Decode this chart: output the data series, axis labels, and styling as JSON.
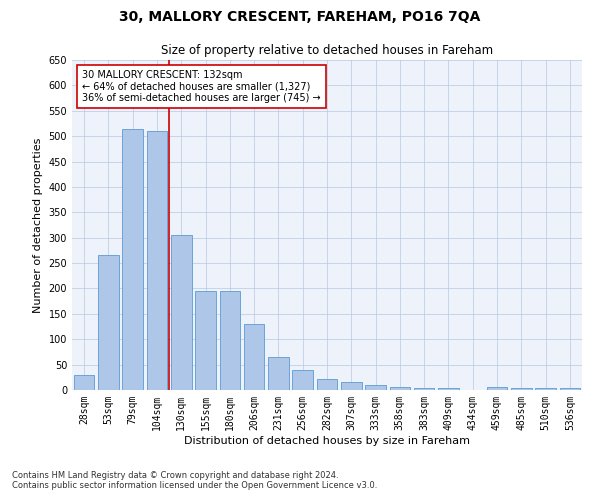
{
  "title": "30, MALLORY CRESCENT, FAREHAM, PO16 7QA",
  "subtitle": "Size of property relative to detached houses in Fareham",
  "xlabel": "Distribution of detached houses by size in Fareham",
  "ylabel": "Number of detached properties",
  "categories": [
    "28sqm",
    "53sqm",
    "79sqm",
    "104sqm",
    "130sqm",
    "155sqm",
    "180sqm",
    "206sqm",
    "231sqm",
    "256sqm",
    "282sqm",
    "307sqm",
    "333sqm",
    "358sqm",
    "383sqm",
    "409sqm",
    "434sqm",
    "459sqm",
    "485sqm",
    "510sqm",
    "536sqm"
  ],
  "values": [
    30,
    265,
    515,
    510,
    305,
    195,
    195,
    130,
    65,
    40,
    22,
    15,
    10,
    5,
    4,
    3,
    0,
    5,
    4,
    3,
    4
  ],
  "bar_color": "#aec6e8",
  "bar_edge_color": "#5b9bd5",
  "highlight_line_color": "#cc0000",
  "annotation_text": "30 MALLORY CRESCENT: 132sqm\n← 64% of detached houses are smaller (1,327)\n36% of semi-detached houses are larger (745) →",
  "annotation_box_color": "#ffffff",
  "annotation_box_edge_color": "#cc0000",
  "ylim": [
    0,
    650
  ],
  "yticks": [
    0,
    50,
    100,
    150,
    200,
    250,
    300,
    350,
    400,
    450,
    500,
    550,
    600,
    650
  ],
  "footnote1": "Contains HM Land Registry data © Crown copyright and database right 2024.",
  "footnote2": "Contains public sector information licensed under the Open Government Licence v3.0.",
  "plot_bg_color": "#eef3fb",
  "title_fontsize": 10,
  "subtitle_fontsize": 8.5,
  "axis_label_fontsize": 8,
  "tick_fontsize": 7,
  "annotation_fontsize": 7
}
